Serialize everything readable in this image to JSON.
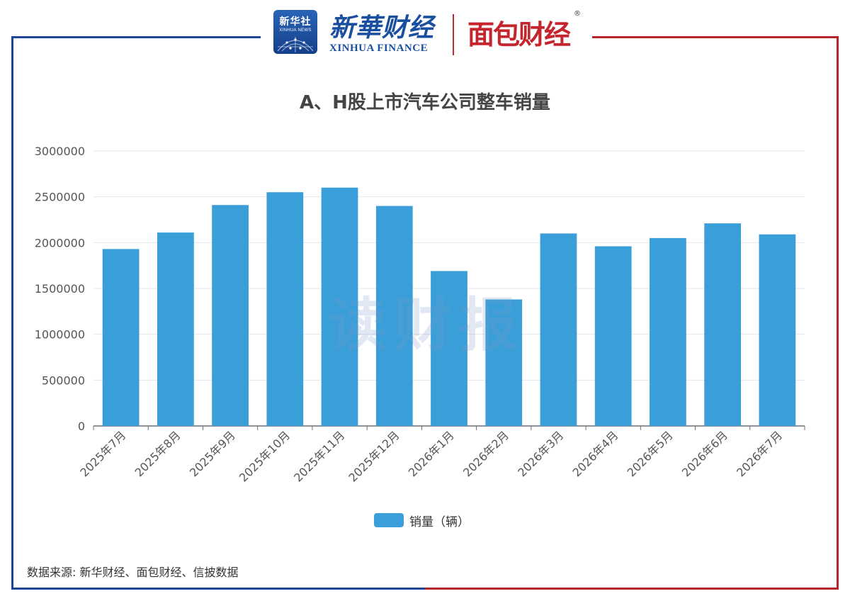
{
  "header": {
    "xinhua_box_cn": "新华社",
    "xinhua_box_en": "XINHUA NEWS",
    "finance_cn": "新華财经",
    "finance_en": "XINHUA FINANCE",
    "mianbao": "面包财经",
    "registered_mark": "®"
  },
  "watermark": "读财报",
  "source": "数据来源: 新华财经、面包财经、信披数据",
  "colors": {
    "bar": "#3a9fd8",
    "frame_blue": "#1e4596",
    "frame_red": "#b3242b"
  },
  "chart_data": {
    "type": "bar",
    "title": "A、H股上市汽车公司整车销量",
    "categories": [
      "2025年7月",
      "2025年8月",
      "2025年9月",
      "2025年10月",
      "2025年11月",
      "2025年12月",
      "2026年1月",
      "2026年2月",
      "2026年3月",
      "2026年4月",
      "2026年5月",
      "2026年6月",
      "2026年7月"
    ],
    "series": [
      {
        "name": "销量（辆）",
        "values": [
          1930000,
          2110000,
          2410000,
          2550000,
          2600000,
          2400000,
          1690000,
          1380000,
          2100000,
          1960000,
          2050000,
          2210000,
          2090000
        ]
      }
    ],
    "ylim": [
      0,
      3000000
    ],
    "yticks": [
      "0",
      "500000",
      "1000000",
      "1500000",
      "2000000",
      "2500000",
      "3000000"
    ],
    "grid": true,
    "legend_position": "bottom-center"
  }
}
